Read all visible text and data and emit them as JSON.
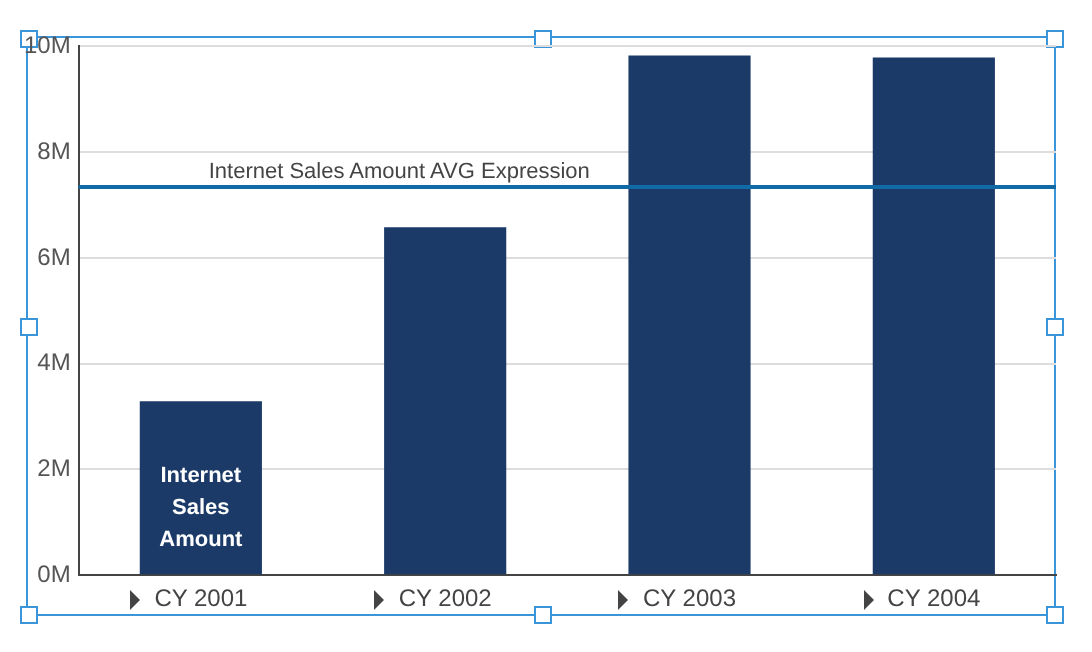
{
  "chart_data": {
    "type": "bar",
    "categories": [
      "CY 2001",
      "CY 2002",
      "CY 2003",
      "CY 2004"
    ],
    "series": [
      {
        "name": "Internet Sales Amount",
        "color": "#1b3a68",
        "values": [
          3.29,
          6.58,
          9.83,
          9.79
        ]
      }
    ],
    "ylim": [
      0,
      10
    ],
    "yticks": [
      {
        "value": 0,
        "label": "0M"
      },
      {
        "value": 2,
        "label": "2M"
      },
      {
        "value": 4,
        "label": "4M"
      },
      {
        "value": 6,
        "label": "6M"
      },
      {
        "value": 8,
        "label": "8M"
      },
      {
        "value": 10,
        "label": "10M"
      }
    ],
    "ref_lines": [
      {
        "axis": "y",
        "value": 7.34,
        "label": "Internet Sales Amount AVG Expression",
        "color": "#0f6aa6"
      }
    ],
    "grid": "y",
    "legend": false
  }
}
